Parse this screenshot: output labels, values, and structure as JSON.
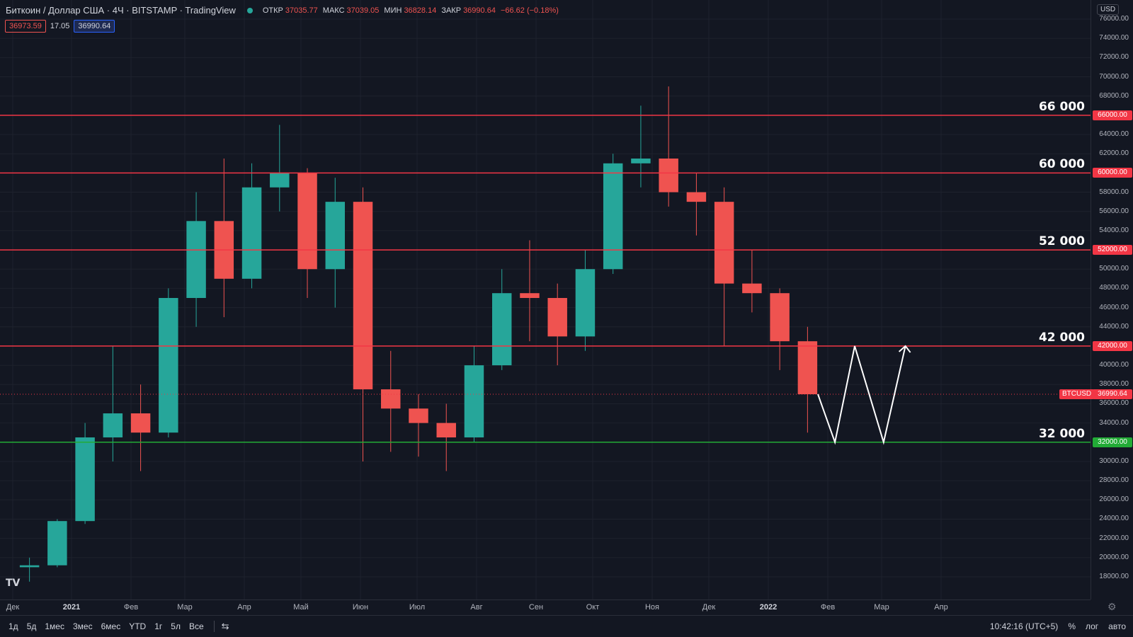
{
  "header": {
    "symbol": "Биткоин / Доллар США · 4Ч · BITSTAMP · TradingView",
    "open_label": "ОТКР",
    "open": "37035.77",
    "high_label": "МАКС",
    "high": "37039.05",
    "low_label": "МИН",
    "low": "36828.14",
    "close_label": "ЗАКР",
    "close": "36990.64",
    "change": "−66.62 (−0.18%)",
    "bid": "36973.59",
    "spread": "17.05",
    "ask": "36990.64"
  },
  "price_axis": {
    "currency": "USD",
    "ticks": [
      "76000.00",
      "74000.00",
      "72000.00",
      "70000.00",
      "68000.00",
      "66000.00",
      "64000.00",
      "62000.00",
      "60000.00",
      "58000.00",
      "56000.00",
      "54000.00",
      "52000.00",
      "50000.00",
      "48000.00",
      "46000.00",
      "44000.00",
      "42000.00",
      "40000.00",
      "38000.00",
      "36000.00",
      "34000.00",
      "32000.00",
      "30000.00",
      "28000.00",
      "26000.00",
      "24000.00",
      "22000.00",
      "20000.00",
      "18000.00"
    ],
    "current_symbol": "BTCUSD",
    "current_price": "36990.64"
  },
  "levels": [
    {
      "label": "66 000",
      "value": 66000,
      "tag": "66000.00",
      "color": "#f23645"
    },
    {
      "label": "60 000",
      "value": 60000,
      "tag": "60000.00",
      "color": "#f23645"
    },
    {
      "label": "52 000",
      "value": 52000,
      "tag": "52000.00",
      "color": "#f23645"
    },
    {
      "label": "42 000",
      "value": 42000,
      "tag": "42000.00",
      "color": "#f23645"
    },
    {
      "label": "32 000",
      "value": 32000,
      "tag": "32000.00",
      "color": "#089981"
    }
  ],
  "time_axis": {
    "months": [
      {
        "label": "Дек",
        "bold": false
      },
      {
        "label": "2021",
        "bold": true
      },
      {
        "label": "Фев",
        "bold": false
      },
      {
        "label": "Мар",
        "bold": false
      },
      {
        "label": "Апр",
        "bold": false
      },
      {
        "label": "Май",
        "bold": false
      },
      {
        "label": "Июн",
        "bold": false
      },
      {
        "label": "Июл",
        "bold": false
      },
      {
        "label": "Авг",
        "bold": false
      },
      {
        "label": "Сен",
        "bold": false
      },
      {
        "label": "Окт",
        "bold": false
      },
      {
        "label": "Ноя",
        "bold": false
      },
      {
        "label": "Дек",
        "bold": false
      },
      {
        "label": "2022",
        "bold": true
      },
      {
        "label": "Фев",
        "bold": false
      },
      {
        "label": "Мар",
        "bold": false
      },
      {
        "label": "Апр",
        "bold": false
      }
    ]
  },
  "bottom_bar": {
    "timeframes": [
      "1д",
      "5д",
      "1мес",
      "3мес",
      "6мес",
      "YTD",
      "1г",
      "5л",
      "Все"
    ],
    "clock": "10:42:16 (UTC+5)",
    "percent": "%",
    "log": "лог",
    "auto": "авто"
  },
  "colors": {
    "up": "#26a69a",
    "down": "#ef5350",
    "background": "#131722",
    "projection": "#ffffff"
  },
  "chart_data": {
    "type": "candlestick",
    "title": "",
    "xlabel": "",
    "ylabel": "",
    "ylim": [
      17000,
      77000
    ],
    "x": [
      "2020-12",
      "2020-12",
      "2021-01",
      "2021-01",
      "2021-01",
      "2021-02",
      "2021-02",
      "2021-03",
      "2021-03",
      "2021-04",
      "2021-04",
      "2021-05",
      "2021-05",
      "2021-06",
      "2021-06",
      "2021-07",
      "2021-07",
      "2021-08",
      "2021-08",
      "2021-09",
      "2021-09",
      "2021-10",
      "2021-10",
      "2021-11",
      "2021-11",
      "2021-12",
      "2021-12",
      "2022-01",
      "2022-01"
    ],
    "series": [
      {
        "values": [
          [
            19000,
            20000,
            17500,
            19200
          ],
          [
            19200,
            24000,
            19000,
            23800
          ],
          [
            23800,
            34000,
            23500,
            32500
          ],
          [
            32500,
            42000,
            30000,
            35000
          ],
          [
            35000,
            38000,
            29000,
            33000
          ],
          [
            33000,
            48000,
            32500,
            47000
          ],
          [
            47000,
            58000,
            44000,
            55000
          ],
          [
            55000,
            61500,
            45000,
            49000
          ],
          [
            49000,
            61000,
            48000,
            58500
          ],
          [
            58500,
            65000,
            56000,
            60000
          ],
          [
            60000,
            60500,
            47000,
            50000
          ],
          [
            50000,
            59500,
            46000,
            57000
          ],
          [
            57000,
            58500,
            30000,
            37500
          ],
          [
            37500,
            41500,
            31000,
            35500
          ],
          [
            35500,
            37000,
            30500,
            34000
          ],
          [
            34000,
            36000,
            29000,
            32500
          ],
          [
            32500,
            42000,
            32000,
            40000
          ],
          [
            40000,
            50000,
            39500,
            47500
          ],
          [
            47500,
            53000,
            42500,
            47000
          ],
          [
            47000,
            48500,
            40000,
            43000
          ],
          [
            43000,
            52000,
            41500,
            50000
          ],
          [
            50000,
            62000,
            49500,
            61000
          ],
          [
            61000,
            67000,
            58500,
            61500
          ],
          [
            61500,
            69000,
            56500,
            58000
          ],
          [
            58000,
            60000,
            53500,
            57000
          ],
          [
            57000,
            58500,
            42000,
            48500
          ],
          [
            48500,
            52000,
            45500,
            47500
          ],
          [
            47500,
            48000,
            39500,
            42500
          ],
          [
            42500,
            44000,
            33000,
            36990
          ]
        ]
      }
    ],
    "projection": [
      {
        "x": "2022-01-26",
        "y": 37000
      },
      {
        "x": "2022-02-05",
        "y": 32000
      },
      {
        "x": "2022-02-16",
        "y": 42000
      },
      {
        "x": "2022-03-02",
        "y": 32000
      },
      {
        "x": "2022-03-13",
        "y": 42000
      }
    ],
    "grid": true
  }
}
